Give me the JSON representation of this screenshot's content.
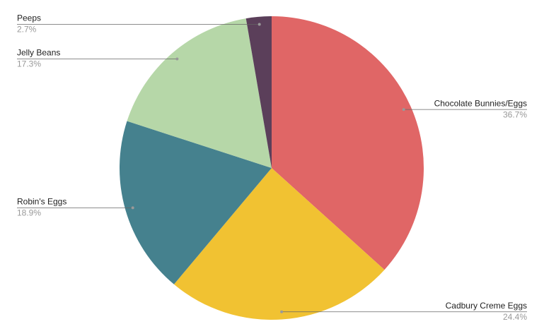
{
  "chart_data": {
    "type": "pie",
    "categories": [
      "Chocolate Bunnies/Eggs",
      "Cadbury Creme Eggs",
      "Robin's Eggs",
      "Jelly Beans",
      "Peeps"
    ],
    "values": [
      36.7,
      24.4,
      18.9,
      17.3,
      2.7
    ],
    "value_labels": [
      "36.7%",
      "24.4%",
      "18.9%",
      "17.3%",
      "2.7%"
    ],
    "colors": [
      "#e06666",
      "#f1c232",
      "#45818e",
      "#b6d7a8",
      "#5b3f5a"
    ]
  }
}
